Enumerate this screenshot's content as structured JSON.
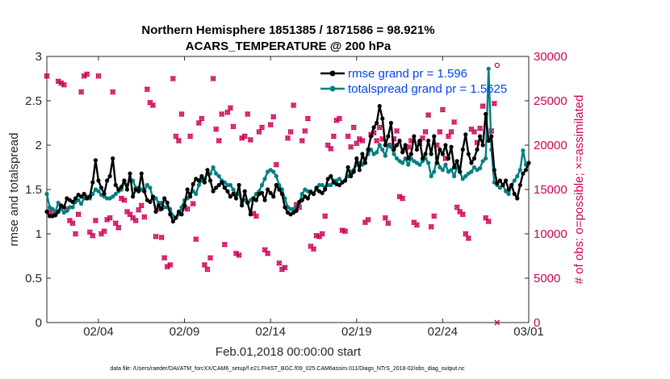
{
  "chart_data": {
    "type": "line",
    "title": "Northern Hemisphere 1851385 / 1871586 = 98.921%",
    "subtitle": "ACARS_TEMPERATURE @ 200 hPa",
    "xlabel": "Feb.01,2018 00:00:00 start",
    "ylabel": "rmse and totalspread",
    "y2label": "# of obs: o=possible; ×=assimilated",
    "x_tick_labels": [
      "02/04",
      "02/09",
      "02/14",
      "02/19",
      "02/24",
      "03/01"
    ],
    "x_tick_days": [
      3,
      8,
      13,
      18,
      23,
      28
    ],
    "xlim": [
      0,
      28
    ],
    "ylim": [
      0,
      3
    ],
    "y_ticks": [
      0,
      0.5,
      1,
      1.5,
      2,
      2.5,
      3
    ],
    "y_tick_labels": [
      "0",
      "0.5",
      "1",
      "1.5",
      "2",
      "2.5",
      "3"
    ],
    "y2lim": [
      0,
      30000
    ],
    "y2_ticks": [
      0,
      5000,
      10000,
      15000,
      20000,
      25000,
      30000
    ],
    "y2_tick_labels": [
      "0",
      "5000",
      "10000",
      "15000",
      "20000",
      "25000",
      "30000"
    ],
    "colors": {
      "rmse": "#000000",
      "spread": "#007f7f",
      "obs": "#cc0055",
      "legend_text": "#0044ee"
    },
    "series": [
      {
        "name": "rmse grand pr = 1.596",
        "key": "rmse",
        "values": [
          1.25,
          1.2,
          1.2,
          1.21,
          1.25,
          1.32,
          1.3,
          1.4,
          1.38,
          1.36,
          1.4,
          1.44,
          1.42,
          1.45,
          1.4,
          1.42,
          1.58,
          1.83,
          1.6,
          1.52,
          1.45,
          1.6,
          1.65,
          1.85,
          1.55,
          1.5,
          1.53,
          1.6,
          1.5,
          1.68,
          1.42,
          1.5,
          1.48,
          1.68,
          1.48,
          1.38,
          1.36,
          1.42,
          1.25,
          1.32,
          1.28,
          1.4,
          1.35,
          1.22,
          1.14,
          1.18,
          1.25,
          1.22,
          1.32,
          1.5,
          1.42,
          1.56,
          1.62,
          1.6,
          1.65,
          1.58,
          1.72,
          1.6,
          1.48,
          1.52,
          1.55,
          1.58,
          1.52,
          1.48,
          1.42,
          1.45,
          1.4,
          1.55,
          1.32,
          1.48,
          1.35,
          1.22,
          1.4,
          1.38,
          1.45,
          1.46,
          1.38,
          1.5,
          1.46,
          1.42,
          1.55,
          1.5,
          1.45,
          1.3,
          1.24,
          1.22,
          1.24,
          1.26,
          1.36,
          1.38,
          1.42,
          1.4,
          1.47,
          1.45,
          1.52,
          1.48,
          1.46,
          1.5,
          1.62,
          1.65,
          1.58,
          1.56,
          1.55,
          1.58,
          1.6,
          1.75,
          1.65,
          1.7,
          1.85,
          1.72,
          1.9,
          1.8,
          1.95,
          2.1,
          2.2,
          2.25,
          2.44,
          2.3,
          2.0,
          2.1,
          2.25,
          1.95,
          2.0,
          2.05,
          1.92,
          2.0,
          1.85,
          1.9,
          2.1,
          1.95,
          2.05,
          1.85,
          1.9,
          2.05,
          1.9,
          2.1,
          1.8,
          1.95,
          1.9,
          2.0,
          1.85,
          1.98,
          1.75,
          1.82,
          1.7,
          1.95,
          2.12,
          1.9,
          1.8,
          1.85,
          1.95,
          2.1,
          2.0,
          2.35,
          2.05,
          2.1,
          1.72,
          1.57,
          1.6,
          1.55,
          1.6,
          1.5,
          1.55,
          1.45,
          1.4,
          1.55,
          1.68,
          1.72,
          1.8
        ]
      },
      {
        "name": "totalspread grand pr = 1.5625",
        "key": "spread",
        "values": [
          1.45,
          1.3,
          1.28,
          1.25,
          1.35,
          1.28,
          1.24,
          1.26,
          1.3,
          1.3,
          1.36,
          1.38,
          1.34,
          1.4,
          1.42,
          1.4,
          1.45,
          1.5,
          1.48,
          1.44,
          1.42,
          1.4,
          1.4,
          1.42,
          1.45,
          1.48,
          1.5,
          1.58,
          1.55,
          1.6,
          1.6,
          1.52,
          1.52,
          1.5,
          1.48,
          1.55,
          1.52,
          1.4,
          1.4,
          1.35,
          1.35,
          1.3,
          1.3,
          1.28,
          1.2,
          1.18,
          1.22,
          1.3,
          1.38,
          1.4,
          1.45,
          1.48,
          1.45,
          1.55,
          1.6,
          1.62,
          1.68,
          1.68,
          1.75,
          1.68,
          1.65,
          1.6,
          1.58,
          1.55,
          1.55,
          1.5,
          1.45,
          1.45,
          1.35,
          1.38,
          1.35,
          1.38,
          1.4,
          1.45,
          1.48,
          1.55,
          1.62,
          1.7,
          1.72,
          1.7,
          1.65,
          1.55,
          1.5,
          1.4,
          1.3,
          1.28,
          1.28,
          1.3,
          1.35,
          1.45,
          1.5,
          1.48,
          1.48,
          1.45,
          1.5,
          1.55,
          1.55,
          1.52,
          1.55,
          1.55,
          1.6,
          1.6,
          1.62,
          1.58,
          1.6,
          1.65,
          1.7,
          1.72,
          1.78,
          1.8,
          1.78,
          1.85,
          1.9,
          1.95,
          1.9,
          1.92,
          2.0,
          1.95,
          1.88,
          2.0,
          1.98,
          1.9,
          1.85,
          1.82,
          1.8,
          1.85,
          1.78,
          1.85,
          1.82,
          1.8,
          1.78,
          1.82,
          1.85,
          1.8,
          1.65,
          1.7,
          1.85,
          1.75,
          1.72,
          1.78,
          1.7,
          1.72,
          1.65,
          1.75,
          1.7,
          1.62,
          1.65,
          1.68,
          1.7,
          1.75,
          1.72,
          1.74,
          1.82,
          1.85,
          2.86,
          1.95,
          1.58,
          1.55,
          1.52,
          1.55,
          1.48,
          1.45,
          1.55,
          1.6,
          1.65,
          1.72,
          1.94,
          1.78,
          1.8
        ]
      },
      {
        "name": "# of obs possible",
        "key": "obs_possible",
        "axis": "right",
        "values": [
          27800,
          12500,
          12200,
          12400,
          27200,
          27000,
          26800,
          12800,
          11500,
          11200,
          10000,
          12200,
          26000,
          27800,
          28000,
          10200,
          9800,
          11500,
          27800,
          10000,
          10300,
          11600,
          11800,
          26000,
          11200,
          10700,
          14000,
          13800,
          12500,
          12200,
          11800,
          11500,
          12700,
          13200,
          11900,
          26300,
          24800,
          24500,
          9700,
          12800,
          9600,
          7300,
          6300,
          6500,
          27500,
          21000,
          20500,
          23500,
          13000,
          12800,
          21000,
          13400,
          9400,
          22500,
          23000,
          6500,
          6000,
          7300,
          27500,
          21800,
          20500,
          23500,
          8800,
          23700,
          24200,
          22100,
          7800,
          7600,
          20800,
          21000,
          23500,
          20600,
          12300,
          12000,
          21500,
          22000,
          8200,
          7800,
          22300,
          23200,
          17800,
          6700,
          6000,
          6200,
          20800,
          21500,
          24500,
          13300,
          13000,
          20500,
          21600,
          23000,
          8600,
          8300,
          9800,
          9700,
          10000,
          12000,
          20000,
          19600,
          21000,
          22800,
          23000,
          10400,
          10300,
          21000,
          19800,
          22000,
          20200,
          20700,
          20500,
          11300,
          11600,
          21200,
          21400,
          20500,
          22000,
          20700,
          11800,
          11200,
          20000,
          20700,
          21600,
          14200,
          14000,
          19500,
          19800,
          20500,
          11300,
          11000,
          20200,
          20800,
          21500,
          23400,
          10800,
          12000,
          20000,
          21500,
          24000,
          18500,
          21000,
          21500,
          22600,
          13000,
          12500,
          12200,
          10000,
          9500,
          21800,
          21500,
          20300,
          21900,
          24400,
          11800,
          11400,
          21600,
          24700,
          29000
        ]
      },
      {
        "name": "# of obs assimilated",
        "key": "obs_assimilated",
        "axis": "right",
        "values": [
          27800,
          12500,
          12200,
          12400,
          27200,
          27000,
          26800,
          12800,
          11500,
          11200,
          10000,
          12200,
          26000,
          27800,
          28000,
          10200,
          9800,
          11500,
          27800,
          10000,
          10300,
          11600,
          11800,
          26000,
          11200,
          10700,
          14000,
          13800,
          12500,
          12200,
          11800,
          11500,
          12700,
          13200,
          11900,
          26300,
          24800,
          24500,
          9700,
          12800,
          9600,
          7300,
          6300,
          6500,
          27500,
          21000,
          20500,
          23500,
          13000,
          12800,
          21000,
          13400,
          9400,
          22500,
          23000,
          6500,
          6000,
          7300,
          27500,
          21800,
          20500,
          23500,
          8800,
          23700,
          24200,
          22100,
          7800,
          7600,
          20800,
          21000,
          23500,
          20600,
          12300,
          12000,
          21500,
          22000,
          8200,
          7800,
          22300,
          23200,
          17800,
          6700,
          6000,
          6200,
          20800,
          21500,
          24500,
          13300,
          13000,
          20500,
          21600,
          23000,
          8600,
          8300,
          9800,
          9700,
          10000,
          12000,
          20000,
          19600,
          21000,
          22800,
          23000,
          10400,
          10300,
          21000,
          19800,
          22000,
          20200,
          20700,
          20500,
          11300,
          11600,
          21200,
          21400,
          20500,
          22000,
          20700,
          11800,
          11200,
          20000,
          20700,
          21600,
          14200,
          14000,
          19500,
          19800,
          20500,
          11300,
          11000,
          20200,
          20800,
          21500,
          23400,
          10800,
          12000,
          20000,
          21500,
          24000,
          18500,
          21000,
          21500,
          22600,
          13000,
          12500,
          12200,
          10000,
          9500,
          21800,
          21500,
          20300,
          21900,
          24400,
          11800,
          11400,
          21600,
          24700,
          0
        ]
      }
    ]
  },
  "footer": "data file: /Users/raeder/DAI/ATM_forcXX/CAM6_setup/f.e21.FHIST_BGC.f09_025.CAM6assim.011/Diags_NTrS_2018-02/obs_diag_output.nc"
}
